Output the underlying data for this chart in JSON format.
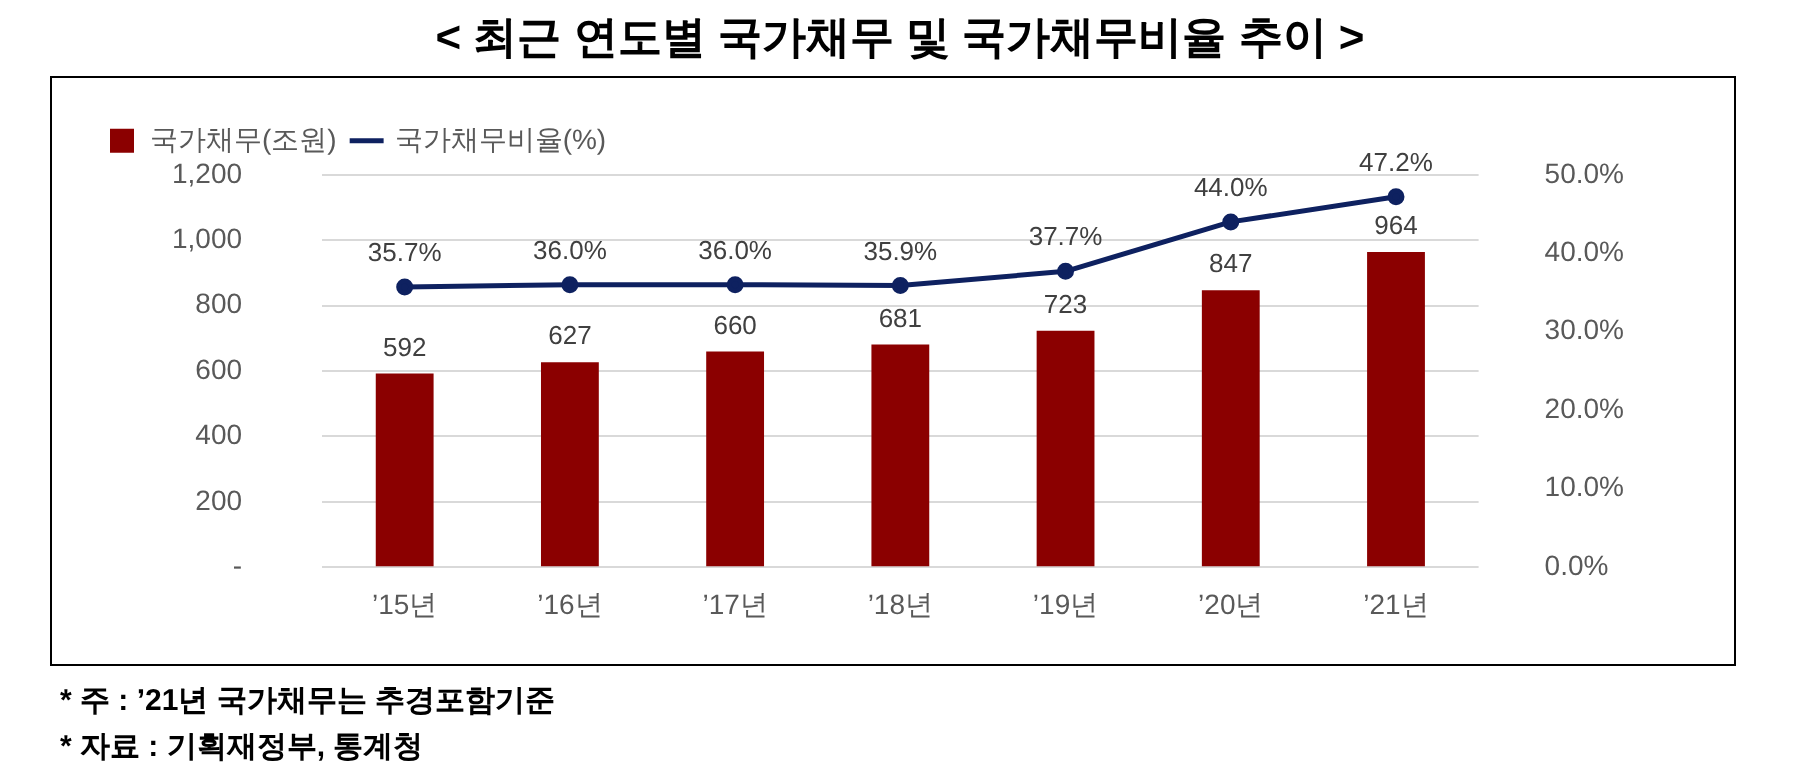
{
  "chart_data": {
    "type": "bar",
    "title": "< 최근 연도별 국가채무 및 국가채무비율 추이 >",
    "categories": [
      "’15년",
      "’16년",
      "’17년",
      "’18년",
      "’19년",
      "’20년",
      "’21년"
    ],
    "series": [
      {
        "name": "국가채무(조원)",
        "color": "#8b0000",
        "values": [
          592,
          627,
          660,
          681,
          723,
          847,
          964
        ],
        "value_labels": [
          "592",
          "627",
          "660",
          "681",
          "723",
          "847",
          "964"
        ]
      },
      {
        "name": "국가채무비율(%)",
        "type": "line",
        "axis": "y2",
        "color": "#0e2160",
        "marker": "circle",
        "values": [
          35.7,
          36.0,
          36.0,
          35.9,
          37.7,
          44.0,
          47.2
        ],
        "value_labels": [
          "35.7%",
          "36.0%",
          "36.0%",
          "35.9%",
          "37.7%",
          "44.0%",
          "47.2%"
        ]
      }
    ],
    "ylim": [
      0,
      1200
    ],
    "yticks": [
      {
        "value": 0,
        "label": "-"
      },
      {
        "value": 200,
        "label": "200"
      },
      {
        "value": 400,
        "label": "400"
      },
      {
        "value": 600,
        "label": "600"
      },
      {
        "value": 800,
        "label": "800"
      },
      {
        "value": 1000,
        "label": "1,000"
      },
      {
        "value": 1200,
        "label": "1,200"
      }
    ],
    "y2lim": [
      0,
      50
    ],
    "y2ticks": [
      {
        "value": 0,
        "label": "0.0%"
      },
      {
        "value": 10,
        "label": "10.0%"
      },
      {
        "value": 20,
        "label": "20.0%"
      },
      {
        "value": 30,
        "label": "30.0%"
      },
      {
        "value": 40,
        "label": "40.0%"
      },
      {
        "value": 50,
        "label": "50.0%"
      }
    ],
    "grid": "y",
    "legend": "top",
    "annotations": [
      "* 주 : ’21년 국가채무는 추경포함기준",
      "* 자료 : 기획재정부, 통계청"
    ]
  }
}
